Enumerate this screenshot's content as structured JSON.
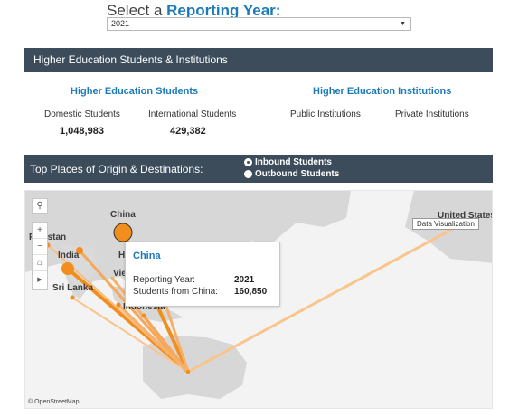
{
  "header": {
    "prefix": "Select a ",
    "accent": "Reporting Year:"
  },
  "year_select": {
    "value": "2021",
    "caret_icon": "chevron-down-icon"
  },
  "section1": {
    "title": "Higher Education Students & Institutions"
  },
  "students": {
    "title": "Higher Education Students",
    "domestic_label": "Domestic Students",
    "domestic_value": "1,048,983",
    "international_label": "International Students",
    "international_value": "429,382"
  },
  "institutions": {
    "title": "Higher Education Institutions",
    "public_label": "Public Institutions",
    "private_label": "Private Institutions"
  },
  "section2": {
    "title": "Top Places of Origin & Destinations:",
    "options": [
      {
        "label": "Inbound Students",
        "checked": true
      },
      {
        "label": "Outbound Students",
        "checked": false
      }
    ]
  },
  "map": {
    "places": {
      "china": "China",
      "pakistan": "Pakistan",
      "india": "India",
      "sri_lanka": "Sri Lanka",
      "indonesia": "Indonesia",
      "vietnam": "Viet",
      "hong_kong": "H",
      "united_states": "United States"
    },
    "tooltip": {
      "title": "China",
      "year_label": "Reporting Year:",
      "year_value": "2021",
      "students_label": "Students from China:",
      "students_value": "160,850"
    },
    "hover_label": "Data Visualization",
    "attribution": "© OpenStreetMap",
    "controls": {
      "zoom_in": "+",
      "zoom_out": "−",
      "home": "⌂",
      "play": "▶",
      "search": "⚲"
    },
    "flow_color": "#f28e1e",
    "land_color": "#d7d7d7",
    "sea_color": "#f3f3f3"
  }
}
